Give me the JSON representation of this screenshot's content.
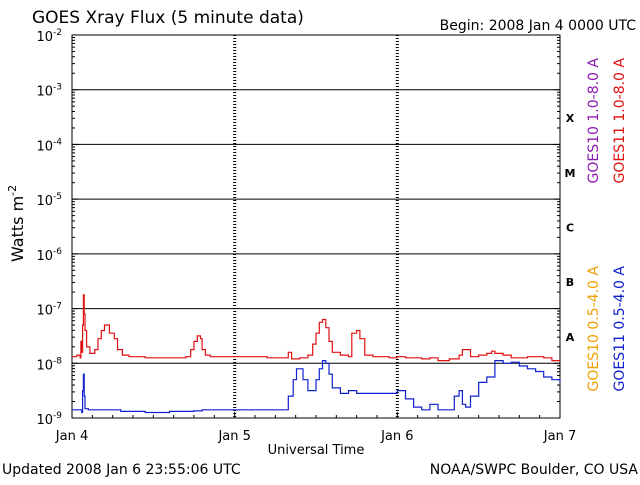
{
  "chart_data": {
    "type": "line",
    "title": "GOES Xray Flux (5 minute data)",
    "begin_label": "Begin:  2008 Jan 4 0000 UTC",
    "xlabel": "Universal Time",
    "ylabel": "Watts m",
    "ylabel_superscript": "-2",
    "y_scale": "log",
    "ylim": [
      1e-09,
      0.01
    ],
    "xlim_days": [
      0,
      3
    ],
    "x_ticks": [
      {
        "day": 0,
        "label": "Jan 4"
      },
      {
        "day": 1,
        "label": "Jan 5"
      },
      {
        "day": 2,
        "label": "Jan 6"
      },
      {
        "day": 3,
        "label": "Jan 7"
      }
    ],
    "y_ticks": [
      {
        "exp": -2,
        "label": "10",
        "sup": "-2"
      },
      {
        "exp": -3,
        "label": "10",
        "sup": "-3"
      },
      {
        "exp": -4,
        "label": "10",
        "sup": "-4"
      },
      {
        "exp": -5,
        "label": "10",
        "sup": "-5"
      },
      {
        "exp": -6,
        "label": "10",
        "sup": "-6"
      },
      {
        "exp": -7,
        "label": "10",
        "sup": "-7"
      },
      {
        "exp": -8,
        "label": "10",
        "sup": "-8"
      },
      {
        "exp": -9,
        "label": "10",
        "sup": "-9"
      }
    ],
    "flare_classes": [
      {
        "label": "X",
        "exp": -3.5
      },
      {
        "label": "M",
        "exp": -4.5
      },
      {
        "label": "C",
        "exp": -5.5
      },
      {
        "label": "B",
        "exp": -6.5
      },
      {
        "label": "A",
        "exp": -7.5
      }
    ],
    "grid": "horizontal lines at each decade",
    "legend": {
      "right_column": [
        {
          "text": "GOES10 1.0-8.0 A",
          "color": "#8b1ab3"
        },
        {
          "text": "GOES11 1.0-8.0 A",
          "color": "#e01010"
        },
        {
          "text": "GOES10 0.5-4.0 A",
          "color": "#f0a000"
        },
        {
          "text": "GOES11 0.5-4.0 A",
          "color": "#1020d0"
        }
      ]
    },
    "series": [
      {
        "name": "GOES11 1.0-8.0 A",
        "color": "#e01010",
        "points": [
          [
            0.0,
            -7.88
          ],
          [
            0.03,
            -7.85
          ],
          [
            0.05,
            -7.9
          ],
          [
            0.055,
            -7.6
          ],
          [
            0.06,
            -7.8
          ],
          [
            0.065,
            -7.3
          ],
          [
            0.07,
            -6.75
          ],
          [
            0.075,
            -7.1
          ],
          [
            0.08,
            -7.4
          ],
          [
            0.09,
            -7.7
          ],
          [
            0.11,
            -7.82
          ],
          [
            0.14,
            -7.75
          ],
          [
            0.16,
            -7.55
          ],
          [
            0.18,
            -7.4
          ],
          [
            0.2,
            -7.3
          ],
          [
            0.23,
            -7.45
          ],
          [
            0.26,
            -7.55
          ],
          [
            0.28,
            -7.75
          ],
          [
            0.31,
            -7.85
          ],
          [
            0.35,
            -7.88
          ],
          [
            0.45,
            -7.9
          ],
          [
            0.6,
            -7.9
          ],
          [
            0.7,
            -7.88
          ],
          [
            0.73,
            -7.75
          ],
          [
            0.75,
            -7.6
          ],
          [
            0.77,
            -7.5
          ],
          [
            0.79,
            -7.55
          ],
          [
            0.8,
            -7.75
          ],
          [
            0.82,
            -7.85
          ],
          [
            0.85,
            -7.88
          ],
          [
            1.0,
            -7.88
          ],
          [
            1.2,
            -7.9
          ],
          [
            1.3,
            -7.9
          ],
          [
            1.33,
            -7.8
          ],
          [
            1.35,
            -7.92
          ],
          [
            1.4,
            -7.9
          ],
          [
            1.45,
            -7.85
          ],
          [
            1.48,
            -7.65
          ],
          [
            1.5,
            -7.45
          ],
          [
            1.52,
            -7.25
          ],
          [
            1.54,
            -7.2
          ],
          [
            1.56,
            -7.35
          ],
          [
            1.58,
            -7.6
          ],
          [
            1.6,
            -7.8
          ],
          [
            1.65,
            -7.85
          ],
          [
            1.7,
            -7.88
          ],
          [
            1.72,
            -7.45
          ],
          [
            1.75,
            -7.4
          ],
          [
            1.77,
            -7.55
          ],
          [
            1.8,
            -7.85
          ],
          [
            1.85,
            -7.88
          ],
          [
            1.95,
            -7.9
          ],
          [
            2.0,
            -7.88
          ],
          [
            2.05,
            -7.9
          ],
          [
            2.15,
            -7.92
          ],
          [
            2.2,
            -7.9
          ],
          [
            2.25,
            -7.95
          ],
          [
            2.32,
            -7.92
          ],
          [
            2.38,
            -7.85
          ],
          [
            2.4,
            -7.75
          ],
          [
            2.45,
            -7.88
          ],
          [
            2.5,
            -7.85
          ],
          [
            2.55,
            -7.82
          ],
          [
            2.58,
            -7.78
          ],
          [
            2.6,
            -7.82
          ],
          [
            2.65,
            -7.85
          ],
          [
            2.7,
            -7.9
          ],
          [
            2.8,
            -7.88
          ],
          [
            2.9,
            -7.9
          ],
          [
            2.95,
            -7.95
          ],
          [
            3.0,
            -7.95
          ]
        ]
      },
      {
        "name": "GOES11 0.5-4.0 A",
        "color": "#1020d0",
        "points": [
          [
            0.0,
            -8.85
          ],
          [
            0.05,
            -8.85
          ],
          [
            0.06,
            -8.9
          ],
          [
            0.065,
            -8.5
          ],
          [
            0.07,
            -8.2
          ],
          [
            0.075,
            -8.6
          ],
          [
            0.08,
            -8.83
          ],
          [
            0.1,
            -8.85
          ],
          [
            0.3,
            -8.88
          ],
          [
            0.45,
            -8.9
          ],
          [
            0.6,
            -8.88
          ],
          [
            0.75,
            -8.87
          ],
          [
            0.8,
            -8.85
          ],
          [
            0.9,
            -8.85
          ],
          [
            1.0,
            -8.85
          ],
          [
            1.2,
            -8.85
          ],
          [
            1.3,
            -8.85
          ],
          [
            1.33,
            -8.6
          ],
          [
            1.36,
            -8.3
          ],
          [
            1.38,
            -8.1
          ],
          [
            1.42,
            -8.3
          ],
          [
            1.45,
            -8.5
          ],
          [
            1.5,
            -8.3
          ],
          [
            1.52,
            -8.1
          ],
          [
            1.54,
            -7.95
          ],
          [
            1.56,
            -8.0
          ],
          [
            1.58,
            -8.2
          ],
          [
            1.6,
            -8.45
          ],
          [
            1.65,
            -8.55
          ],
          [
            1.7,
            -8.5
          ],
          [
            1.75,
            -8.55
          ],
          [
            1.8,
            -8.55
          ],
          [
            1.9,
            -8.55
          ],
          [
            2.0,
            -8.5
          ],
          [
            2.05,
            -8.65
          ],
          [
            2.1,
            -8.8
          ],
          [
            2.15,
            -8.85
          ],
          [
            2.2,
            -8.75
          ],
          [
            2.25,
            -8.85
          ],
          [
            2.3,
            -8.85
          ],
          [
            2.35,
            -8.6
          ],
          [
            2.38,
            -8.5
          ],
          [
            2.4,
            -8.75
          ],
          [
            2.42,
            -8.8
          ],
          [
            2.45,
            -8.6
          ],
          [
            2.5,
            -8.35
          ],
          [
            2.55,
            -8.25
          ],
          [
            2.6,
            -7.95
          ],
          [
            2.65,
            -8.0
          ],
          [
            2.7,
            -7.98
          ],
          [
            2.75,
            -8.05
          ],
          [
            2.8,
            -8.1
          ],
          [
            2.85,
            -8.15
          ],
          [
            2.9,
            -8.25
          ],
          [
            2.95,
            -8.3
          ],
          [
            3.0,
            -8.35
          ]
        ]
      }
    ]
  },
  "footer": {
    "updated": "Updated 2008 Jan  6 23:55:06 UTC",
    "source": "NOAA/SWPC Boulder, CO USA"
  }
}
